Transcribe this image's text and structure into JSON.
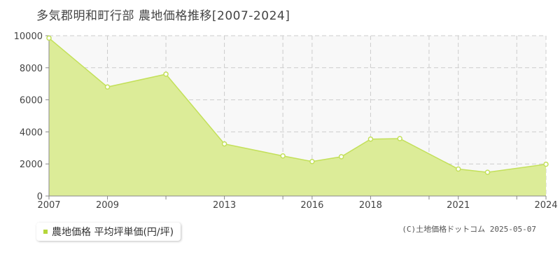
{
  "title": "多気郡明和町行部 農地価格推移[2007-2024]",
  "legend": {
    "label": "農地価格 平均坪単価(円/坪)"
  },
  "credit": "(C)土地価格ドットコム 2025-05-07",
  "colors": {
    "fill": "#dcec98",
    "line": "#c3e05a",
    "plot_bg": "#f8f8f8",
    "grid": "#cccccc",
    "axis": "#888888",
    "swatch": "#b5d63a"
  },
  "chart_data": {
    "type": "area",
    "title": "多気郡明和町行部 農地価格推移[2007-2024]",
    "x": [
      2007,
      2009,
      2011,
      2013,
      2015,
      2016,
      2017,
      2018,
      2019,
      2021,
      2022,
      2024
    ],
    "series": [
      {
        "name": "農地価格 平均坪単価(円/坪)",
        "values": [
          9850,
          6800,
          7600,
          3250,
          2500,
          2150,
          2450,
          3550,
          3580,
          1680,
          1480,
          1980
        ]
      }
    ],
    "xlim": [
      2007,
      2024
    ],
    "ylim": [
      0,
      10000
    ],
    "y_ticks": [
      0,
      2000,
      4000,
      6000,
      8000,
      10000
    ],
    "x_tick_labels": [
      "2007",
      "2009",
      "2013",
      "2016",
      "2018",
      "2021",
      "2024"
    ],
    "x_grid": [
      2007,
      2009,
      2011,
      2013,
      2015,
      2016,
      2018,
      2020,
      2021,
      2023,
      2024
    ],
    "grid": true,
    "legend_position": "bottom-left"
  }
}
